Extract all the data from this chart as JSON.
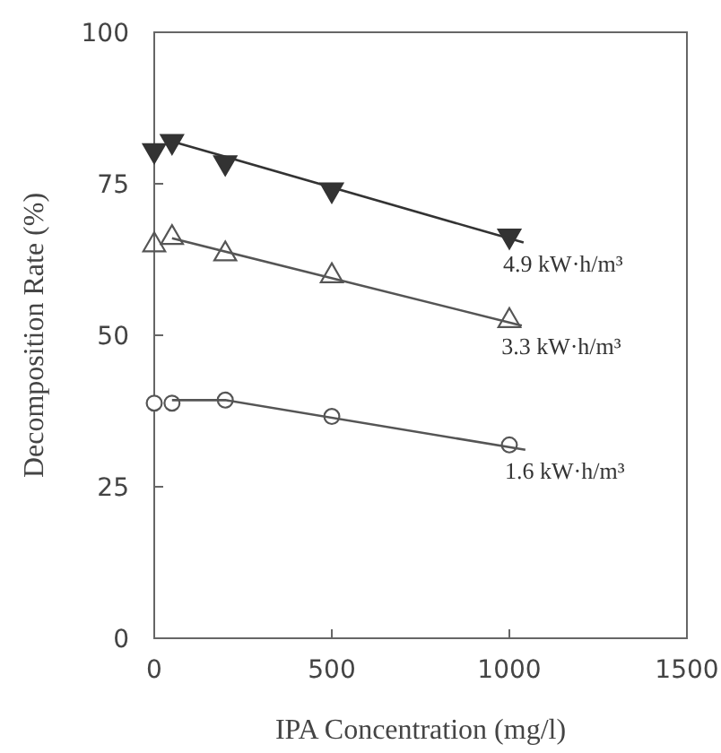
{
  "chart_data": {
    "type": "scatter",
    "xlabel": "IPA Concentration (mg/l)",
    "ylabel": "Decomposition Rate (%)",
    "xlim": [
      0,
      1500
    ],
    "xticks": [
      0,
      500,
      1000,
      1500
    ],
    "ylim": [
      0,
      100
    ],
    "yticks": [
      0,
      25,
      50,
      75,
      100
    ],
    "series": [
      {
        "marker": "triangle-down",
        "color": "#333333",
        "x": [
          0,
          50,
          200,
          500,
          1000
        ],
        "values": [
          80.5,
          82,
          78.5,
          74,
          66.4
        ]
      },
      {
        "type": "line",
        "name": "4.9 kW·h/m³",
        "marker": "none",
        "color": "#333333",
        "x": [
          50,
          1040
        ],
        "values": [
          82,
          65.3
        ]
      },
      {
        "marker": "triangle",
        "color": "#555555",
        "x": [
          0,
          50,
          200,
          500,
          1000
        ],
        "values": [
          64.9,
          66.1,
          63.4,
          59.8,
          52.4
        ]
      },
      {
        "type": "line",
        "name": "3.3 kW·h/m³",
        "marker": "none",
        "color": "#555555",
        "x": [
          50,
          1035
        ],
        "values": [
          66,
          51.6
        ]
      },
      {
        "marker": "circle",
        "color": "#555555",
        "x": [
          0,
          50,
          200,
          500,
          1000
        ],
        "values": [
          38.8,
          38.8,
          39.3,
          36.6,
          31.9
        ]
      },
      {
        "type": "line",
        "name": "1.6 kW·h/m³",
        "marker": "none",
        "color": "#555555",
        "x": [
          50,
          200,
          1045
        ],
        "values": [
          39.3,
          39.3,
          31.1
        ]
      }
    ]
  }
}
